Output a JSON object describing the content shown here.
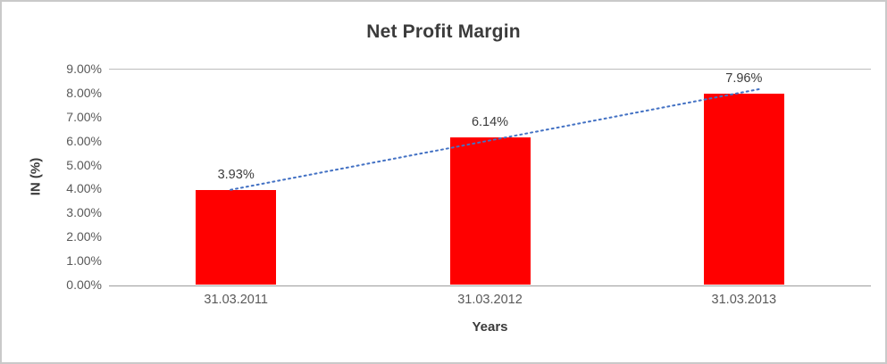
{
  "chart_data": {
    "type": "bar",
    "title": "Net Profit Margin",
    "categories": [
      "31.03.2011",
      "31.03.2012",
      "31.03.2013"
    ],
    "values": [
      3.93,
      6.14,
      7.96
    ],
    "data_labels": [
      "3.93%",
      "6.14%",
      "7.96%"
    ],
    "xlabel": "Years",
    "ylabel": "IN (%)",
    "ylim": [
      0,
      9
    ],
    "y_ticks": [
      0,
      1,
      2,
      3,
      4,
      5,
      6,
      7,
      8,
      9
    ],
    "y_tick_labels": [
      "0.00%",
      "1.00%",
      "2.00%",
      "3.00%",
      "4.00%",
      "5.00%",
      "6.00%",
      "7.00%",
      "8.00%",
      "9.00%"
    ],
    "grid": false,
    "legend": "none",
    "bar_color": "#ff0000",
    "trendline": {
      "type": "linear",
      "style": "dotted",
      "color": "#4472c4"
    }
  }
}
